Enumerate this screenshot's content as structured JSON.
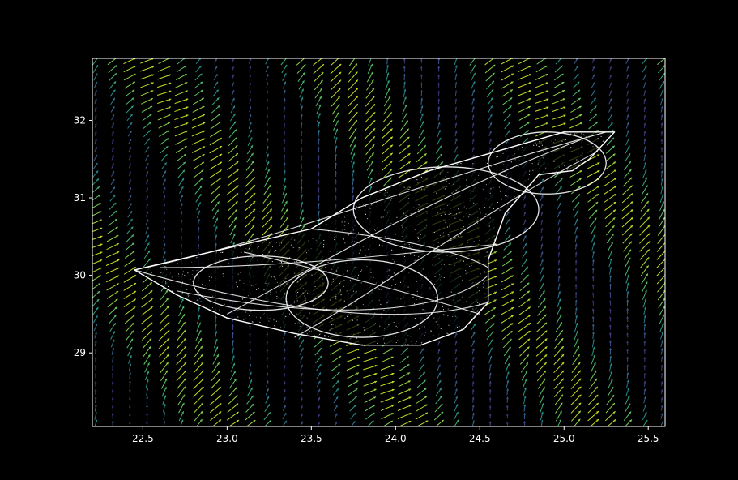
{
  "chart_data": {
    "type": "scatter",
    "description_of_marks": "vector field (quiver arrows colored by magnitude) overlaid with a dense white point cloud attractor",
    "title": "",
    "xlabel": "",
    "ylabel": "",
    "xlim": [
      22.2,
      25.6
    ],
    "ylim": [
      28.05,
      32.8
    ],
    "x_ticks": [
      {
        "value": 22.5,
        "label": "22.5"
      },
      {
        "value": 23.0,
        "label": "23.0"
      },
      {
        "value": 23.5,
        "label": "23.5"
      },
      {
        "value": 24.0,
        "label": "24.0"
      },
      {
        "value": 24.5,
        "label": "24.5"
      },
      {
        "value": 25.0,
        "label": "25.0"
      },
      {
        "value": 25.5,
        "label": "25.5"
      }
    ],
    "y_ticks": [
      {
        "value": 29,
        "label": "29"
      },
      {
        "value": 30,
        "label": "30"
      },
      {
        "value": 31,
        "label": "31"
      },
      {
        "value": 32,
        "label": "32"
      }
    ],
    "grid": false,
    "legend": "none",
    "attractor_outline": [
      [
        22.45,
        30.07
      ],
      [
        22.9,
        30.3
      ],
      [
        23.5,
        30.6
      ],
      [
        23.8,
        31.0
      ],
      [
        24.2,
        31.35
      ],
      [
        24.6,
        31.6
      ],
      [
        25.0,
        31.85
      ],
      [
        25.3,
        31.85
      ],
      [
        25.15,
        31.5
      ],
      [
        25.05,
        31.35
      ],
      [
        24.85,
        31.3
      ],
      [
        24.65,
        30.8
      ],
      [
        24.55,
        30.2
      ],
      [
        24.55,
        29.65
      ],
      [
        24.4,
        29.3
      ],
      [
        24.15,
        29.1
      ],
      [
        23.8,
        29.1
      ],
      [
        23.4,
        29.25
      ],
      [
        23.0,
        29.45
      ],
      [
        22.7,
        29.75
      ],
      [
        22.45,
        30.07
      ]
    ],
    "attractor_loops": [
      {
        "cx": 23.8,
        "cy": 29.7,
        "rx": 0.45,
        "ry": 0.5
      },
      {
        "cx": 24.3,
        "cy": 30.85,
        "rx": 0.55,
        "ry": 0.55
      },
      {
        "cx": 23.2,
        "cy": 29.9,
        "rx": 0.4,
        "ry": 0.35
      },
      {
        "cx": 24.9,
        "cy": 31.45,
        "rx": 0.35,
        "ry": 0.4
      }
    ],
    "colors": {
      "background": "#000000",
      "axes": "#ffffff",
      "attractor": "#ffffff",
      "colormap": [
        "#440154",
        "#3b528b",
        "#21918c",
        "#5ec962",
        "#c8e020"
      ]
    }
  }
}
